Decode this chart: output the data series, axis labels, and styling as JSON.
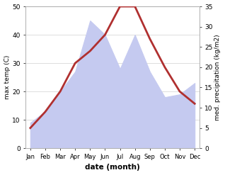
{
  "months": [
    "Jan",
    "Feb",
    "Mar",
    "Apr",
    "May",
    "Jun",
    "Jul",
    "Aug",
    "Sep",
    "Oct",
    "Nov",
    "Dec"
  ],
  "temperature": [
    5,
    9,
    14,
    21,
    24,
    28,
    35,
    35,
    27,
    20,
    14,
    11
  ],
  "precipitation": [
    9,
    13,
    20,
    27,
    45,
    40,
    28,
    40,
    27,
    18,
    19,
    23
  ],
  "temp_color": "#b03030",
  "precip_color_fill": "#c5caf0",
  "precip_color_edge": "#c5caf0",
  "temp_ylim": [
    0,
    35
  ],
  "precip_ylim": [
    0,
    50
  ],
  "temp_yticks": [
    0,
    5,
    10,
    15,
    20,
    25,
    30,
    35
  ],
  "precip_yticks": [
    0,
    10,
    20,
    30,
    40,
    50
  ],
  "xlabel": "date (month)",
  "ylabel_left": "max temp (C)",
  "ylabel_right": "med. precipitation (kg/m2)",
  "background_color": "#ffffff",
  "grid_color": "#d0d0d0"
}
